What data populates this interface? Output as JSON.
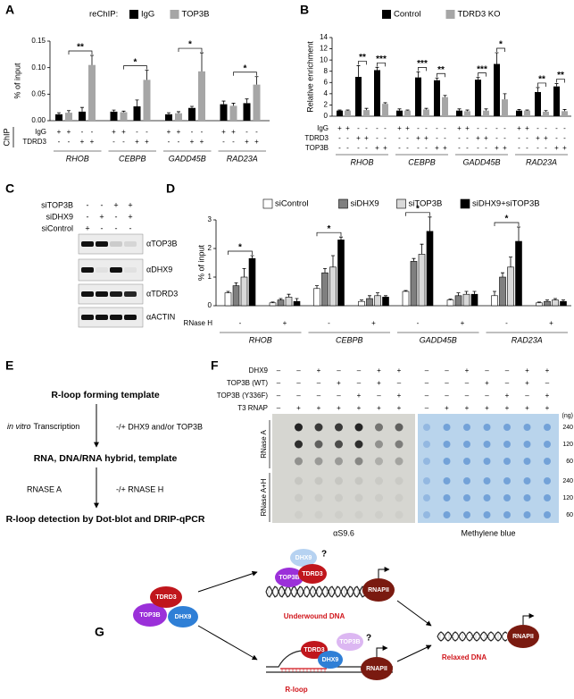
{
  "panel_labels": [
    "A",
    "B",
    "C",
    "D",
    "E",
    "F",
    "G"
  ],
  "chart_data": [
    {
      "type": "bar",
      "legend_title": "reChIP:",
      "ylabel": "% of input",
      "ylim": [
        0,
        0.15
      ],
      "yticks": [
        {
          "value": 0,
          "label": "0.00"
        },
        {
          "value": 0.05,
          "label": "0.05"
        },
        {
          "value": 0.1,
          "label": "0.10"
        },
        {
          "value": 0.15,
          "label": "0.15"
        }
      ],
      "groups": [
        "RHOB",
        "CEBPB",
        "GADD45B",
        "RAD23A"
      ],
      "condition_title": "ChIP",
      "conditions": [
        {
          "name": "IgG",
          "marks": [
            "+",
            "+",
            "-",
            "-",
            "+",
            "+",
            "-",
            "-",
            "+",
            "+",
            "-",
            "-",
            "+",
            "+",
            "-",
            "-"
          ]
        },
        {
          "name": "TDRD3",
          "marks": [
            "-",
            "-",
            "+",
            "+",
            "-",
            "-",
            "+",
            "+",
            "-",
            "-",
            "+",
            "+",
            "-",
            "-",
            "+",
            "+"
          ]
        }
      ],
      "series": [
        {
          "name": "IgG",
          "color": "#000000",
          "values": [
            0.012,
            0.017,
            0.017,
            0.027,
            0.012,
            0.024,
            0.031,
            0.033
          ],
          "errors": [
            0.003,
            0.008,
            0.003,
            0.012,
            0.003,
            0.003,
            0.006,
            0.008
          ]
        },
        {
          "name": "TOP3B",
          "color": "#a6a6a6",
          "values": [
            0.015,
            0.105,
            0.016,
            0.077,
            0.014,
            0.093,
            0.028,
            0.068
          ],
          "errors": [
            0.004,
            0.018,
            0.002,
            0.018,
            0.003,
            0.035,
            0.005,
            0.015
          ]
        }
      ],
      "significance": [
        "**",
        "*",
        "*",
        "*"
      ]
    },
    {
      "type": "bar",
      "ylabel": "Relative enrichment",
      "ylim": [
        0,
        14
      ],
      "yticks": [
        0,
        2,
        4,
        6,
        8,
        10,
        12,
        14
      ],
      "groups": [
        "RHOB",
        "CEBPB",
        "GADD45B",
        "RAD23A"
      ],
      "conditions": [
        {
          "name": "IgG",
          "marks": [
            "+",
            "+",
            "-",
            "-",
            "-",
            "-",
            "+",
            "+",
            "-",
            "-",
            "-",
            "-",
            "+",
            "+",
            "-",
            "-",
            "-",
            "-",
            "+",
            "+",
            "-",
            "-",
            "-",
            "-"
          ]
        },
        {
          "name": "TDRD3",
          "marks": [
            "-",
            "-",
            "+",
            "+",
            "-",
            "-",
            "-",
            "-",
            "+",
            "+",
            "-",
            "-",
            "-",
            "-",
            "+",
            "+",
            "-",
            "-",
            "-",
            "-",
            "+",
            "+",
            "-",
            "-"
          ]
        },
        {
          "name": "TOP3B",
          "marks": [
            "-",
            "-",
            "-",
            "-",
            "+",
            "+",
            "-",
            "-",
            "-",
            "-",
            "+",
            "+",
            "-",
            "-",
            "-",
            "-",
            "+",
            "+",
            "-",
            "-",
            "-",
            "-",
            "+",
            "+"
          ]
        }
      ],
      "series": [
        {
          "name": "Control",
          "color": "#000000",
          "values": [
            1.0,
            7.0,
            8.2,
            1.0,
            6.9,
            6.4,
            1.0,
            6.5,
            9.3,
            1.0,
            4.3,
            5.3
          ],
          "errors": [
            0.1,
            2.0,
            0.5,
            0.3,
            1.0,
            0.4,
            0.3,
            0.4,
            2.0,
            0.2,
            0.8,
            0.5
          ]
        },
        {
          "name": "TDRD3 KO",
          "color": "#a6a6a6",
          "values": [
            1.0,
            1.1,
            2.2,
            1.0,
            1.2,
            3.4,
            0.9,
            1.0,
            3.0,
            1.0,
            0.8,
            0.9
          ],
          "errors": [
            0.1,
            0.3,
            0.2,
            0.1,
            0.2,
            0.3,
            0.2,
            0.3,
            1.0,
            0.1,
            0.2,
            0.3
          ]
        }
      ],
      "significance": [
        "**",
        "***",
        "***",
        "**",
        "***",
        "*",
        "**",
        "**"
      ]
    },
    {
      "type": "bar",
      "ylabel": "% of input",
      "outline": true,
      "ylim": [
        0,
        3
      ],
      "yticks": [
        0,
        1,
        2,
        3
      ],
      "groups": [
        "RHOB",
        "CEBPB",
        "GADD45B",
        "RAD23A"
      ],
      "conditions": [
        {
          "name": "RNase H",
          "marks": [
            "-",
            "+",
            "-",
            "+",
            "-",
            "+",
            "-",
            "+"
          ]
        }
      ],
      "series": [
        {
          "name": "siControl",
          "color": "#ffffff",
          "values": [
            0.45,
            0.1,
            0.6,
            0.15,
            0.5,
            0.2,
            0.35,
            0.1
          ],
          "errors": [
            0.05,
            0.03,
            0.1,
            0.05,
            0.03,
            0.03,
            0.15,
            0.03
          ]
        },
        {
          "name": "siDHX9",
          "color": "#7f7f7f",
          "values": [
            0.7,
            0.2,
            1.15,
            0.25,
            1.55,
            0.35,
            1.0,
            0.15
          ],
          "errors": [
            0.1,
            0.05,
            0.15,
            0.1,
            0.1,
            0.1,
            0.15,
            0.05
          ]
        },
        {
          "name": "siTOP3B",
          "color": "#d9d9d9",
          "values": [
            1.0,
            0.3,
            1.35,
            0.35,
            1.8,
            0.4,
            1.35,
            0.2
          ],
          "errors": [
            0.3,
            0.1,
            0.4,
            0.1,
            0.35,
            0.1,
            0.35,
            0.05
          ]
        },
        {
          "name": "siDHX9+siTOP3B",
          "color": "#000000",
          "values": [
            1.65,
            0.15,
            2.3,
            0.3,
            2.6,
            0.4,
            2.25,
            0.15
          ],
          "errors": [
            0.1,
            0.1,
            0.1,
            0.05,
            0.5,
            0.1,
            0.5,
            0.05
          ]
        }
      ],
      "significance": [
        "*",
        "*",
        "*",
        "*"
      ]
    }
  ],
  "western_blot": {
    "headers": [
      {
        "name": "siTOP3B",
        "marks": [
          "-",
          "-",
          "+",
          "+"
        ]
      },
      {
        "name": "siDHX9",
        "marks": [
          "-",
          "+",
          "-",
          "+"
        ]
      },
      {
        "name": "siControl",
        "marks": [
          "+",
          "-",
          "-",
          "-"
        ]
      }
    ],
    "antibodies": [
      "αTOP3B",
      "αDHX9",
      "αTDRD3",
      "αACTIN"
    ]
  },
  "schematic": {
    "steps": [
      "R-loop forming template",
      "RNA, DNA/RNA hybrid, template",
      "R-loop detection by Dot-blot and DRIP-qPCR"
    ],
    "transitions": [
      {
        "left_emphasis": "in vitro",
        "left": "Transcription",
        "right": "-/+ DHX9 and/or TOP3B"
      },
      {
        "left": "RNASE A",
        "right": "-/+ RNASE H"
      }
    ]
  },
  "dot_blot": {
    "conditions": [
      {
        "name": "DHX9",
        "marks": [
          "–",
          "–",
          "+",
          "–",
          "–",
          "+",
          "+"
        ]
      },
      {
        "name": "TOP3B (WT)",
        "marks": [
          "–",
          "–",
          "–",
          "+",
          "–",
          "+",
          "–"
        ]
      },
      {
        "name": "TOP3B (Y336F)",
        "marks": [
          "–",
          "–",
          "–",
          "–",
          "+",
          "–",
          "+"
        ]
      },
      {
        "name": "T3 RNAP",
        "marks": [
          "–",
          "+",
          "+",
          "+",
          "+",
          "+",
          "+"
        ]
      }
    ],
    "treatments": [
      "RNase A",
      "RNase A+H"
    ],
    "amounts": [
      240,
      120,
      60
    ],
    "amount_unit": "(ng)",
    "membranes": [
      "αS9.6",
      "Methylene blue"
    ]
  },
  "model": {
    "complex": [
      "TDRD3",
      "TOP3B",
      "DHX9"
    ],
    "upper": {
      "proteins": [
        "TOP3B",
        "TDRD3",
        "DHX9",
        "RNAPII"
      ],
      "query": "?",
      "label": "Underwound DNA"
    },
    "lower": {
      "proteins": [
        "TDRD3",
        "DHX9",
        "TOP3B",
        "RNAPII"
      ],
      "query": "?",
      "label": "R-loop"
    },
    "result": {
      "protein": "RNAPII",
      "label": "Relaxed DNA"
    }
  }
}
